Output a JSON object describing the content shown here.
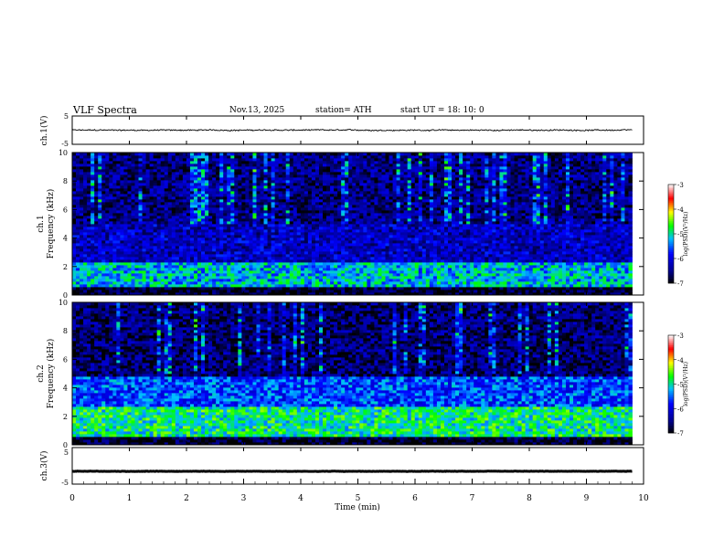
{
  "header": {
    "title": "VLF  Spectra",
    "date": "Nov.13, 2025",
    "station": "station= ATH",
    "start": "start  UT  =    18: 10: 0"
  },
  "chart_data": [
    {
      "type": "line",
      "panel": "ch1-waveform",
      "ylabel": "ch.1(V)",
      "yticks": [
        "5",
        "-5"
      ],
      "ylim": [
        -5,
        5
      ],
      "xlim": [
        0,
        10
      ],
      "x_end": 9.8,
      "description_level": "noise around 0 V, amplitude about ±1 V",
      "series": [
        {
          "values_mean": 0,
          "values_amplitude": 0.8
        }
      ]
    },
    {
      "type": "heatmap",
      "panel": "ch1-spectrogram",
      "ylabel": "Frequency (kHz)",
      "channel_label": "ch.1",
      "yticks": [
        "0",
        "2",
        "4",
        "6",
        "8",
        "10"
      ],
      "ylim": [
        0,
        10
      ],
      "xlim": [
        0,
        10
      ],
      "x_end": 9.8,
      "colorbar": {
        "label": "log(PSD)(V²/Hz)",
        "ticks": [
          "-3",
          "-4",
          "-5",
          "-6",
          "-7"
        ],
        "range": [
          -7,
          -3
        ]
      },
      "bands": [
        {
          "f_from": 0,
          "f_to": 0.6,
          "level": -6.9
        },
        {
          "f_from": 0.6,
          "f_to": 2.4,
          "level": -5.2
        },
        {
          "f_from": 2.4,
          "f_to": 5.0,
          "level": -6.2
        },
        {
          "f_from": 5.0,
          "f_to": 10,
          "level": -6.5
        }
      ]
    },
    {
      "type": "heatmap",
      "panel": "ch2-spectrogram",
      "ylabel": "Frequency (kHz)",
      "channel_label": "ch.2",
      "yticks": [
        "0",
        "2",
        "4",
        "6",
        "8",
        "10"
      ],
      "ylim": [
        0,
        10
      ],
      "xlim": [
        0,
        10
      ],
      "x_end": 9.8,
      "colorbar": {
        "label": "log(PSD)(V²/Hz)",
        "ticks": [
          "-3",
          "-4",
          "-5",
          "-6",
          "-7"
        ],
        "range": [
          -7,
          -3
        ]
      },
      "bands": [
        {
          "f_from": 0,
          "f_to": 0.6,
          "level": -6.9
        },
        {
          "f_from": 0.6,
          "f_to": 2.6,
          "level": -4.9
        },
        {
          "f_from": 2.6,
          "f_to": 4.8,
          "level": -5.6
        },
        {
          "f_from": 4.8,
          "f_to": 10,
          "level": -6.6
        }
      ]
    },
    {
      "type": "line",
      "panel": "ch3-waveform",
      "ylabel": "ch.3(V)",
      "yticks": [
        "5",
        "-5"
      ],
      "ylim": [
        -5,
        5
      ],
      "xlim": [
        0,
        10
      ],
      "x_end": 9.8,
      "series": [
        {
          "values_mean": -1.5,
          "values_amplitude": 0.15
        }
      ]
    }
  ],
  "xaxis": {
    "label": "Time  (min)",
    "ticks": [
      "0",
      "1",
      "2",
      "3",
      "4",
      "5",
      "6",
      "7",
      "8",
      "9",
      "10"
    ]
  },
  "colors": {
    "axis": "#000000",
    "colormap": [
      "#000000",
      "#00008b",
      "#0000ff",
      "#00bfff",
      "#00ff00",
      "#ffff00",
      "#ff0000",
      "#ffffff"
    ]
  }
}
